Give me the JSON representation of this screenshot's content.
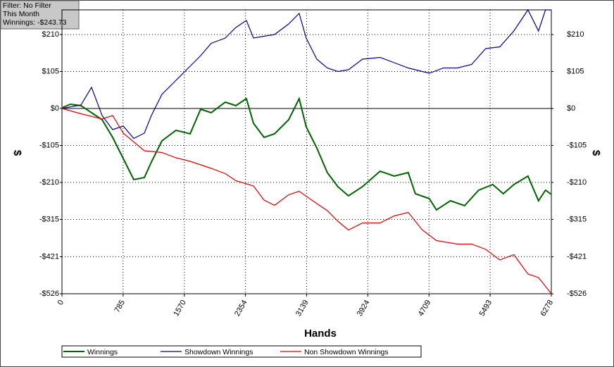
{
  "chart_data": {
    "type": "line",
    "info": [
      "Filter: No Filter",
      "This Month",
      "Winnings: -$243.73"
    ],
    "xlabel": "Hands",
    "ylabel": "$",
    "y2label": "$",
    "xlim": [
      0,
      6278
    ],
    "xticks": [
      0,
      785,
      1570,
      2354,
      3139,
      3924,
      4709,
      5493,
      6278
    ],
    "ylim": [
      -526,
      280
    ],
    "yticks": [
      {
        "value": 210,
        "label": "$210"
      },
      {
        "value": 105,
        "label": "$105"
      },
      {
        "value": 0,
        "label": "$0"
      },
      {
        "value": -105,
        "label": "-$105"
      },
      {
        "value": -210,
        "label": "-$210"
      },
      {
        "value": -315,
        "label": "-$315"
      },
      {
        "value": -421,
        "label": "-$421"
      },
      {
        "value": -526,
        "label": "-$526"
      }
    ],
    "grid": true,
    "series": [
      {
        "name": "Winnings",
        "color": "#006400",
        "x": [
          0,
          108,
          244,
          379,
          515,
          650,
          786,
          921,
          1057,
          1147,
          1282,
          1463,
          1644,
          1779,
          1914,
          2095,
          2231,
          2366,
          2457,
          2592,
          2727,
          2908,
          3043,
          3133,
          3269,
          3404,
          3539,
          3675,
          3855,
          4081,
          4262,
          4442,
          4533,
          4713,
          4804,
          4984,
          5165,
          5346,
          5526,
          5662,
          5797,
          5978,
          6113,
          6203,
          6278
        ],
        "values": [
          2,
          12,
          8,
          -12,
          -32,
          -82,
          -142,
          -202,
          -196,
          -152,
          -92,
          -62,
          -72,
          -2,
          -12,
          18,
          8,
          28,
          -42,
          -82,
          -72,
          -32,
          28,
          -52,
          -112,
          -182,
          -222,
          -248,
          -222,
          -178,
          -192,
          -182,
          -242,
          -256,
          -288,
          -262,
          -276,
          -232,
          -216,
          -242,
          -216,
          -192,
          -262,
          -232,
          -244
        ]
      },
      {
        "name": "Showdown Winnings",
        "color": "#00008b",
        "x": [
          0,
          244,
          379,
          515,
          650,
          786,
          921,
          1057,
          1147,
          1282,
          1463,
          1644,
          1779,
          1914,
          2095,
          2231,
          2366,
          2457,
          2592,
          2727,
          2908,
          3043,
          3133,
          3269,
          3404,
          3539,
          3675,
          3855,
          4081,
          4262,
          4442,
          4623,
          4713,
          4894,
          5074,
          5255,
          5436,
          5617,
          5797,
          5978,
          6113,
          6203,
          6278
        ],
        "values": [
          0,
          10,
          60,
          -20,
          -60,
          -50,
          -85,
          -70,
          -20,
          40,
          80,
          120,
          150,
          185,
          200,
          230,
          250,
          200,
          205,
          210,
          240,
          270,
          200,
          140,
          115,
          105,
          110,
          140,
          145,
          130,
          115,
          105,
          100,
          115,
          115,
          125,
          170,
          175,
          220,
          280,
          220,
          280,
          280
        ]
      },
      {
        "name": "Non Showdown Winnings",
        "color": "#dd0000",
        "x": [
          0,
          244,
          515,
          650,
          786,
          1057,
          1282,
          1463,
          1644,
          1914,
          2095,
          2231,
          2457,
          2592,
          2727,
          2908,
          3043,
          3269,
          3404,
          3539,
          3675,
          3855,
          4081,
          4262,
          4442,
          4623,
          4804,
          5074,
          5255,
          5436,
          5617,
          5797,
          5978,
          6113,
          6278
        ],
        "values": [
          0,
          -15,
          -30,
          -20,
          -70,
          -120,
          -125,
          -140,
          -150,
          -170,
          -185,
          -205,
          -220,
          -260,
          -275,
          -245,
          -235,
          -270,
          -290,
          -320,
          -345,
          -325,
          -325,
          -305,
          -295,
          -345,
          -375,
          -385,
          -385,
          -400,
          -430,
          -415,
          -470,
          -480,
          -526
        ]
      }
    ]
  }
}
